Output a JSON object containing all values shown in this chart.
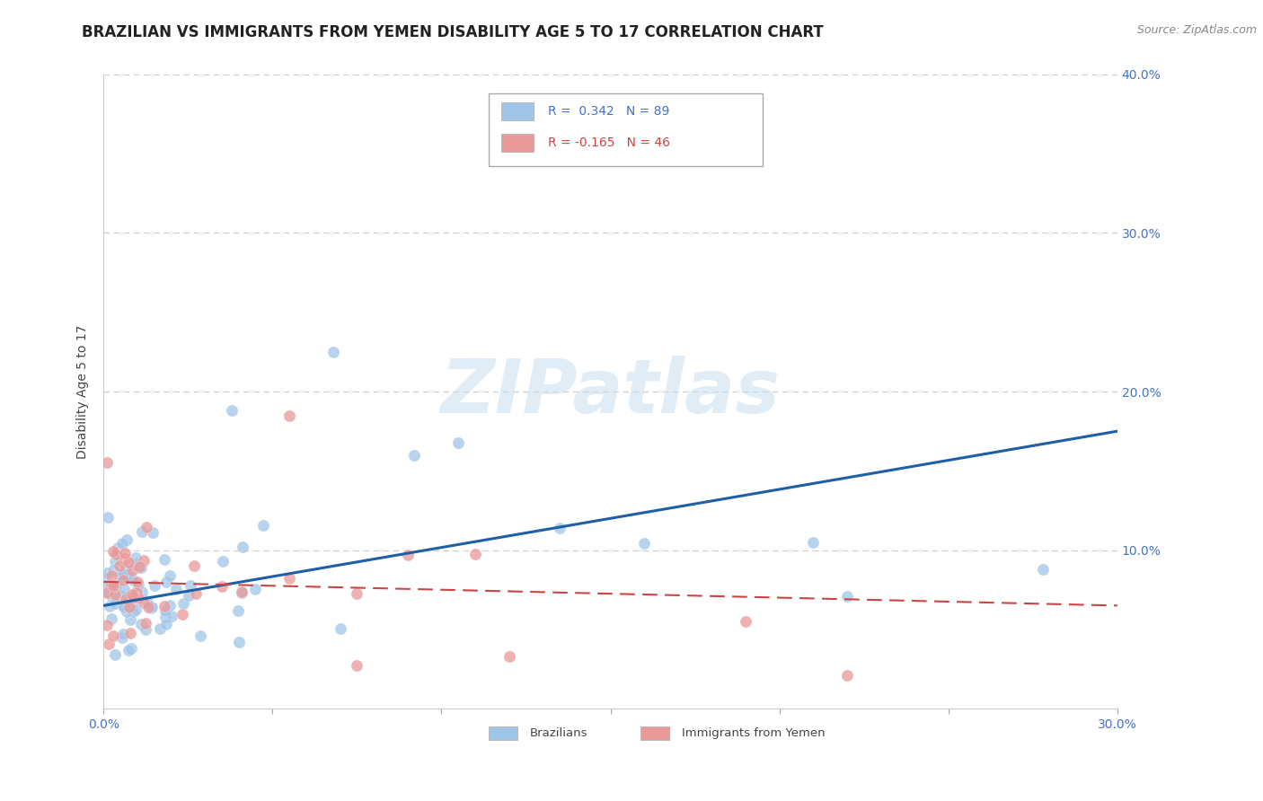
{
  "title": "BRAZILIAN VS IMMIGRANTS FROM YEMEN DISABILITY AGE 5 TO 17 CORRELATION CHART",
  "source": "Source: ZipAtlas.com",
  "ylabel": "Disability Age 5 to 17",
  "xlim": [
    0.0,
    0.3
  ],
  "ylim": [
    0.0,
    0.4
  ],
  "xtick_positions": [
    0.0,
    0.05,
    0.1,
    0.15,
    0.2,
    0.25,
    0.3
  ],
  "xtick_labels": [
    "0.0%",
    "",
    "",
    "",
    "",
    "",
    "30.0%"
  ],
  "ytick_positions": [
    0.0,
    0.1,
    0.2,
    0.3,
    0.4
  ],
  "ytick_labels_right": [
    "",
    "10.0%",
    "20.0%",
    "30.0%",
    "40.0%"
  ],
  "blue_color": "#9fc5e8",
  "pink_color": "#ea9999",
  "blue_line_color": "#1f5fa6",
  "pink_line_color": "#cc4444",
  "blue_line_x": [
    0.0,
    0.3
  ],
  "blue_line_y": [
    0.065,
    0.175
  ],
  "pink_line_x": [
    0.0,
    0.3
  ],
  "pink_line_y": [
    0.08,
    0.065
  ],
  "watermark": "ZIPatlas",
  "legend_R_blue": "R =  0.342",
  "legend_N_blue": "N = 89",
  "legend_R_pink": "R = -0.165",
  "legend_N_pink": "N = 46",
  "background_color": "#ffffff",
  "grid_color": "#cccccc",
  "title_fontsize": 12,
  "source_fontsize": 9,
  "tick_fontsize": 10,
  "tick_color": "#4472c4",
  "ylabel_fontsize": 10,
  "legend_fontsize": 10
}
